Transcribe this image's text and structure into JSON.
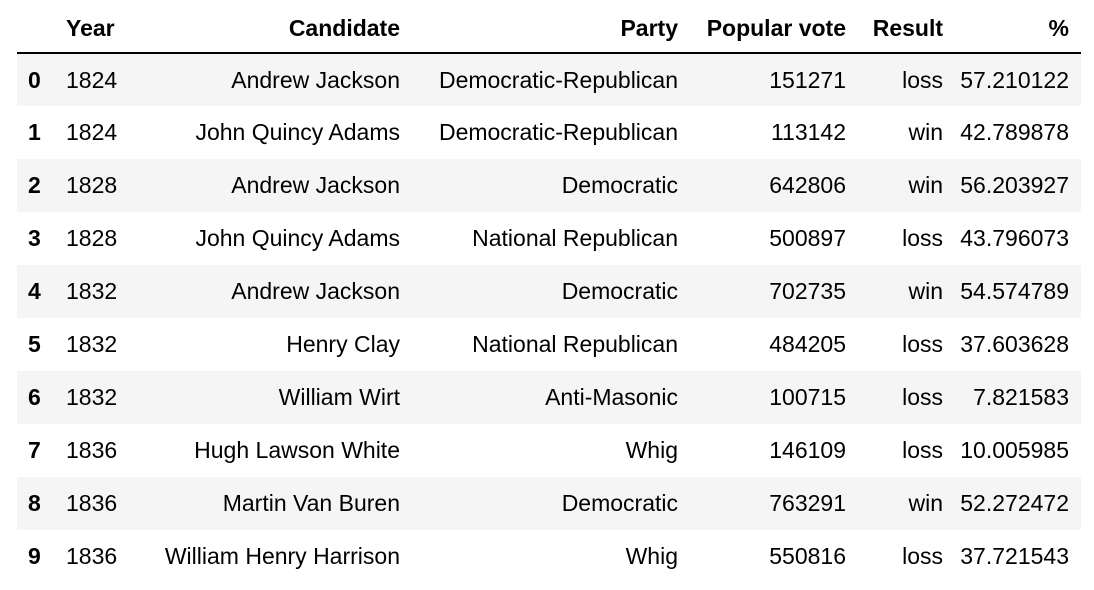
{
  "table": {
    "columns": [
      "",
      "Year",
      "Candidate",
      "Party",
      "Popular vote",
      "Result",
      "%"
    ],
    "rows": [
      {
        "index": "0",
        "year": "1824",
        "candidate": "Andrew Jackson",
        "party": "Democratic-Republican",
        "popular_vote": "151271",
        "result": "loss",
        "percent": "57.210122"
      },
      {
        "index": "1",
        "year": "1824",
        "candidate": "John Quincy Adams",
        "party": "Democratic-Republican",
        "popular_vote": "113142",
        "result": "win",
        "percent": "42.789878"
      },
      {
        "index": "2",
        "year": "1828",
        "candidate": "Andrew Jackson",
        "party": "Democratic",
        "popular_vote": "642806",
        "result": "win",
        "percent": "56.203927"
      },
      {
        "index": "3",
        "year": "1828",
        "candidate": "John Quincy Adams",
        "party": "National Republican",
        "popular_vote": "500897",
        "result": "loss",
        "percent": "43.796073"
      },
      {
        "index": "4",
        "year": "1832",
        "candidate": "Andrew Jackson",
        "party": "Democratic",
        "popular_vote": "702735",
        "result": "win",
        "percent": "54.574789"
      },
      {
        "index": "5",
        "year": "1832",
        "candidate": "Henry Clay",
        "party": "National Republican",
        "popular_vote": "484205",
        "result": "loss",
        "percent": "37.603628"
      },
      {
        "index": "6",
        "year": "1832",
        "candidate": "William Wirt",
        "party": "Anti-Masonic",
        "popular_vote": "100715",
        "result": "loss",
        "percent": "7.821583"
      },
      {
        "index": "7",
        "year": "1836",
        "candidate": "Hugh Lawson White",
        "party": "Whig",
        "popular_vote": "146109",
        "result": "loss",
        "percent": "10.005985"
      },
      {
        "index": "8",
        "year": "1836",
        "candidate": "Martin Van Buren",
        "party": "Democratic",
        "popular_vote": "763291",
        "result": "win",
        "percent": "52.272472"
      },
      {
        "index": "9",
        "year": "1836",
        "candidate": "William Henry Harrison",
        "party": "Whig",
        "popular_vote": "550816",
        "result": "loss",
        "percent": "37.721543"
      }
    ]
  },
  "colors": {
    "stripe": "#f5f5f5",
    "header_rule": "#000000",
    "text": "#000000"
  }
}
